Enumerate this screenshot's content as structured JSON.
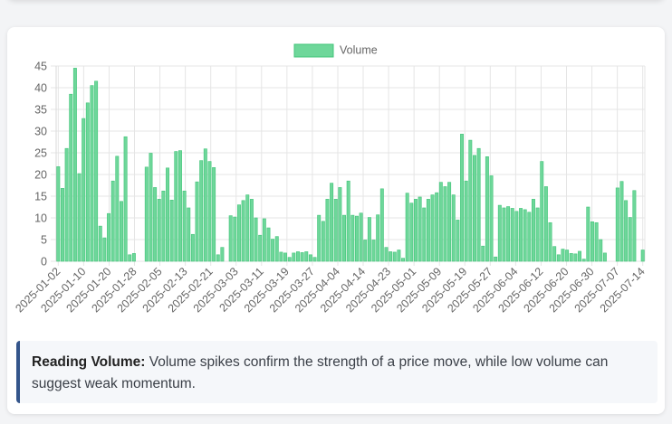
{
  "callout": {
    "title": "Reading Volume:",
    "text": " Volume spikes confirm the strength of a price move, while low volume can suggest weak momentum."
  },
  "colors": {
    "bar_fill": "#6ed79a",
    "bar_stroke": "#43c47a",
    "accent_border": "#34558b",
    "grid": "#e5e5e5",
    "text": "#666666"
  },
  "chart_data": {
    "type": "bar",
    "legend": [
      "Volume"
    ],
    "legend_position": "top",
    "grid": true,
    "ylim": [
      0,
      45
    ],
    "yticks": [
      0,
      5,
      10,
      15,
      20,
      25,
      30,
      35,
      40,
      45
    ],
    "xtick_labels": [
      "2025-01-02",
      "2025-01-10",
      "2025-01-20",
      "2025-01-28",
      "2025-02-05",
      "2025-02-13",
      "2025-02-21",
      "2025-03-03",
      "2025-03-11",
      "2025-03-19",
      "2025-03-27",
      "2025-04-04",
      "2025-04-14",
      "2025-04-23",
      "2025-05-01",
      "2025-05-09",
      "2025-05-19",
      "2025-05-27",
      "2025-06-04",
      "2025-06-12",
      "2025-06-20",
      "2025-06-30",
      "2025-07-07",
      "2025-07-14"
    ],
    "series": [
      {
        "name": "Volume",
        "values": [
          21.8,
          16.8,
          26,
          38.5,
          44.5,
          20.2,
          32.9,
          36.5,
          40.5,
          41.5,
          8.1,
          5.4,
          11,
          18.5,
          24.2,
          13.8,
          28.7,
          1.5,
          1.8,
          0,
          0,
          21.7,
          24.9,
          17,
          14.3,
          16.2,
          21.5,
          14.1,
          25.3,
          25.5,
          16.2,
          12.3,
          6.2,
          18.3,
          23.2,
          25.9,
          23,
          21.6,
          1.5,
          3.2,
          0,
          10.5,
          10.2,
          13,
          14,
          15.3,
          14.3,
          10,
          6,
          9.8,
          7.7,
          5.1,
          5.7,
          2.1,
          1.9,
          0.9,
          1.9,
          2.2,
          2,
          2.2,
          1.5,
          0.9,
          10.6,
          9.2,
          14.3,
          18,
          14.3,
          17,
          10.6,
          18.5,
          10.6,
          10.4,
          11.1,
          4.9,
          10.1,
          4.9,
          10.7,
          16.7,
          3.2,
          2.2,
          2.1,
          2.6,
          0.7,
          15.7,
          13.4,
          14.3,
          14.8,
          12.3,
          14.3,
          15.3,
          15.8,
          18.2,
          17.2,
          18.2,
          15.3,
          9.5,
          29.3,
          18.5,
          27.9,
          24.4,
          26,
          3.5,
          24.1,
          19.7,
          1,
          12.9,
          12.3,
          12.6,
          12.2,
          11.5,
          12.2,
          11.9,
          11.3,
          14.3,
          12.3,
          23,
          17.2,
          8.9,
          3.4,
          1.5,
          2.8,
          2.6,
          1.8,
          1.7,
          2.3,
          0.5,
          12.5,
          9.1,
          8.9,
          5,
          1.9,
          0,
          0,
          16.9,
          18.4,
          14,
          10.1,
          16.3,
          0,
          2.6
        ]
      }
    ]
  }
}
